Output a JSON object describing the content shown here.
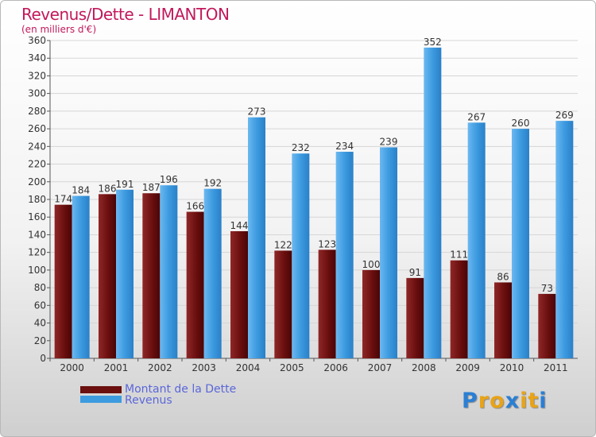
{
  "title": "Revenus/Dette - LIMANTON",
  "unit_label": "(en milliers d'€)",
  "logo": {
    "letters": [
      "P",
      "r",
      "o",
      "x",
      "i",
      "t",
      "i"
    ],
    "colors": [
      "#2a7fd4",
      "#e8a317",
      "#e8a317",
      "#2a7fd4",
      "#e8a317",
      "#e8a317",
      "#2a7fd4"
    ]
  },
  "legend": [
    {
      "label": "Montant de la Dette",
      "color": "#6b0f0f"
    },
    {
      "label": "Revenus",
      "color": "#3d9be0"
    }
  ],
  "chart_data": {
    "type": "bar",
    "title": "Revenus/Dette - LIMANTON",
    "ylabel": "(en milliers d'€)",
    "categories": [
      "2000",
      "2001",
      "2002",
      "2003",
      "2004",
      "2005",
      "2006",
      "2007",
      "2008",
      "2009",
      "2010",
      "2011"
    ],
    "series": [
      {
        "name": "Montant de la Dette",
        "values": [
          174,
          186,
          187,
          166,
          144,
          122,
          123,
          100,
          91,
          111,
          86,
          73
        ],
        "color": "#6b0f0f"
      },
      {
        "name": "Revenus",
        "values": [
          184,
          191,
          196,
          192,
          273,
          232,
          234,
          239,
          352,
          267,
          260,
          269
        ],
        "color": "#3d9be0"
      }
    ],
    "ylim": [
      0,
      360
    ],
    "yticks": [
      0,
      20,
      40,
      60,
      80,
      100,
      120,
      140,
      160,
      180,
      200,
      220,
      240,
      260,
      280,
      300,
      320,
      340,
      360
    ],
    "grid": true,
    "legend_position": "bottom-left"
  }
}
